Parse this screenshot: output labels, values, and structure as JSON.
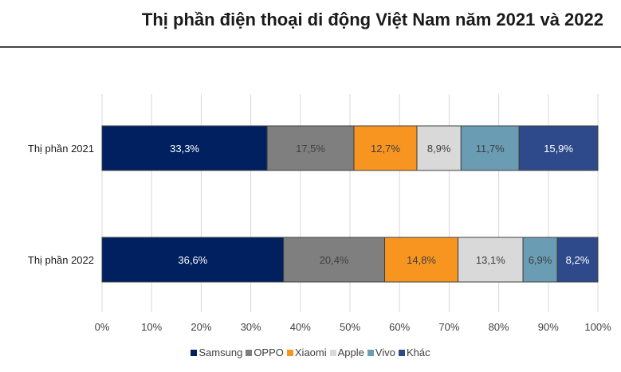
{
  "chart_data": {
    "type": "bar",
    "orientation": "horizontal",
    "stacked": true,
    "title": "Thị phần điện thoại di động Việt Nam năm 2021 và 2022",
    "categories": [
      "Thị phần 2021",
      "Thị phần 2022"
    ],
    "series": [
      {
        "name": "Samsung",
        "color": "#002060",
        "label_color": "#ffffff",
        "values": [
          33.3,
          36.6
        ],
        "labels": [
          "33,3%",
          "36,6%"
        ]
      },
      {
        "name": "OPPO",
        "color": "#7f7f7f",
        "label_color": "#404040",
        "values": [
          17.5,
          20.4
        ],
        "labels": [
          "17,5%",
          "20,4%"
        ]
      },
      {
        "name": "Xiaomi",
        "color": "#f79520",
        "label_color": "#404040",
        "values": [
          12.7,
          14.8
        ],
        "labels": [
          "12,7%",
          "14,8%"
        ]
      },
      {
        "name": "Apple",
        "color": "#d9d9d9",
        "label_color": "#404040",
        "values": [
          8.9,
          13.1
        ],
        "labels": [
          "8,9%",
          "13,1%"
        ]
      },
      {
        "name": "Vivo",
        "color": "#6a9cb4",
        "label_color": "#404040",
        "values": [
          11.7,
          6.9
        ],
        "labels": [
          "11,7%",
          "6,9%"
        ]
      },
      {
        "name": "Khác",
        "color": "#2e4a8b",
        "label_color": "#ffffff",
        "values": [
          15.9,
          8.2
        ],
        "labels": [
          "15,9%",
          "8,2%"
        ]
      }
    ],
    "xlim": [
      0,
      100
    ],
    "xticks": [
      "0%",
      "10%",
      "20%",
      "30%",
      "40%",
      "50%",
      "60%",
      "70%",
      "80%",
      "90%",
      "100%"
    ],
    "grid": true,
    "legend_position": "bottom"
  }
}
